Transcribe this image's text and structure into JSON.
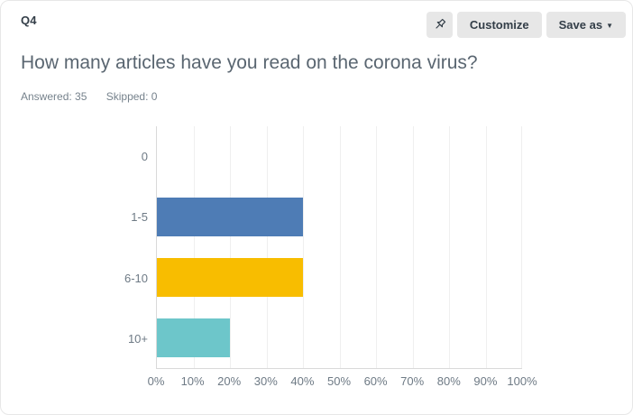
{
  "header": {
    "question_number": "Q4",
    "customize_label": "Customize",
    "save_as_label": "Save as",
    "save_as_caret": "▼"
  },
  "question": {
    "title": "How many articles have you read on the corona virus?",
    "answered_label": "Answered: 35",
    "skipped_label": "Skipped: 0"
  },
  "chart_data": {
    "type": "bar",
    "orientation": "horizontal",
    "title": "",
    "categories": [
      "0",
      "1-5",
      "6-10",
      "10+"
    ],
    "values": [
      0,
      40,
      40,
      20
    ],
    "unit": "percent",
    "bar_colors": [
      null,
      "#4e7cb5",
      "#f8bd00",
      "#6dc6ca"
    ],
    "x_ticks": [
      "0%",
      "10%",
      "20%",
      "30%",
      "40%",
      "50%",
      "60%",
      "70%",
      "80%",
      "90%",
      "100%"
    ],
    "xlim": [
      0,
      100
    ],
    "grid": true,
    "legend": false,
    "grid_color": "#efefef",
    "axis_color": "#d9d9d9",
    "label_color": "#6e7a85"
  },
  "colors": {
    "button_bg": "#e7e7e7",
    "button_text": "#333e48",
    "title_text": "#5a6671",
    "meta_text": "#76828c"
  }
}
